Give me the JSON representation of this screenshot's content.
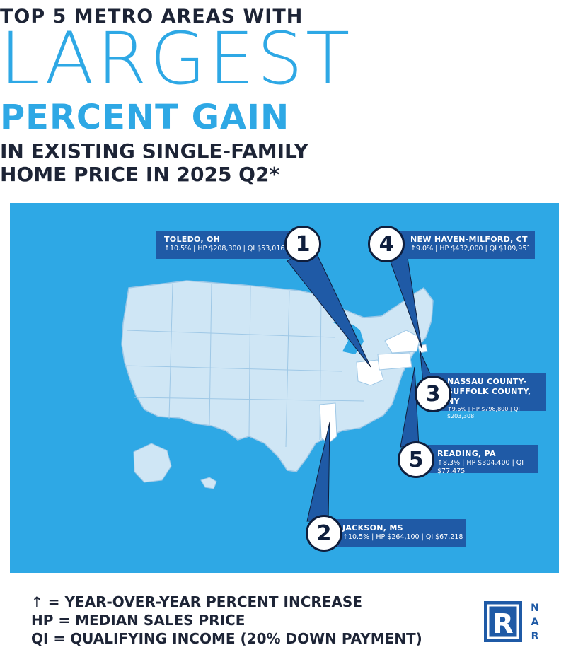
{
  "title": {
    "line1": "TOP 5 METRO AREAS WITH",
    "line2": "LARGEST",
    "line3": "PERCENT GAIN",
    "line4": "IN EXISTING SINGLE-FAMILY",
    "line5_prefix": "HOME PRICE IN ",
    "line5_bold": "2025 Q2*"
  },
  "callouts": [
    {
      "rank": "1",
      "name": "TOLEDO, OH",
      "stats": "↑10.5% | HP $208,300 | QI $53,016"
    },
    {
      "rank": "2",
      "name": "JACKSON, MS",
      "stats": "↑10.5% | HP $264,100 | QI $67,218"
    },
    {
      "rank": "3",
      "name_l1": "NASSAU COUNTY-",
      "name_l2": "SUFFOLK COUNTY, NY",
      "stats": "↑9.6% | HP $798,800 | QI $203,308"
    },
    {
      "rank": "4",
      "name": "NEW HAVEN-MILFORD, CT",
      "stats": "↑9.0% | HP $432,000 | QI $109,951"
    },
    {
      "rank": "5",
      "name": "READING, PA",
      "stats": "↑8.3% | HP $304,400 | QI $77,475"
    }
  ],
  "legend": {
    "line1": "↑ = YEAR-OVER-YEAR PERCENT INCREASE",
    "line2": "HP = MEDIAN SALES PRICE",
    "line3": "QI = QUALIFYING INCOME (20% DOWN PAYMENT)"
  },
  "logo": {
    "mark": "R",
    "letters": [
      "N",
      "A",
      "R"
    ]
  },
  "colors": {
    "accent": "#2ea8e5",
    "navy": "#1d2436",
    "callout": "#1f5aa6",
    "map_fill": "#cfe6f5",
    "highlight": "#ffffff"
  }
}
